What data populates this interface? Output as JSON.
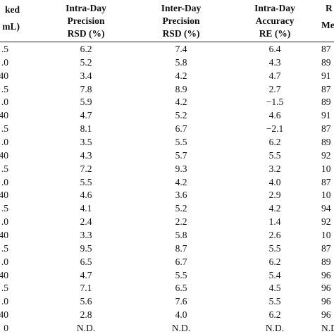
{
  "table": {
    "headers": [
      [
        "ked",
        "mL)"
      ],
      [
        "Intra-Day",
        "Precision",
        "RSD (%)"
      ],
      [
        "Inter-Day",
        "Precision",
        "RSD (%)"
      ],
      [
        "Intra-Day",
        "Accuracy",
        "RE (%)"
      ],
      [
        "R",
        "Me"
      ]
    ],
    "rows": [
      [
        ".5",
        "6.2",
        "7.4",
        "6.4",
        "87"
      ],
      [
        ".0",
        "5.2",
        "5.8",
        "4.3",
        "89"
      ],
      [
        "40",
        "3.4",
        "4.2",
        "4.7",
        "91"
      ],
      [
        ".5",
        "7.8",
        "8.9",
        "2.7",
        "87"
      ],
      [
        ".0",
        "5.9",
        "4.2",
        "−1.5",
        "89"
      ],
      [
        "40",
        "4.7",
        "5.2",
        "4.6",
        "91"
      ],
      [
        ".5",
        "8.1",
        "6.7",
        "−2.1",
        "87"
      ],
      [
        ".0",
        "3.5",
        "5.5",
        "6.2",
        "89"
      ],
      [
        "40",
        "4.3",
        "5.7",
        "5.5",
        "92"
      ],
      [
        ".5",
        "7.2",
        "9.3",
        "3.2",
        "10"
      ],
      [
        ".0",
        "5.5",
        "4.2",
        "4.0",
        "87"
      ],
      [
        "40",
        "4.6",
        "3.6",
        "2.9",
        "10"
      ],
      [
        ".5",
        "4.1",
        "5.2",
        "4.2",
        "94"
      ],
      [
        ".0",
        "2.4",
        "2.2",
        "1.4",
        "92"
      ],
      [
        "40",
        "3.3",
        "5.8",
        "2.6",
        "10"
      ],
      [
        ".5",
        "9.5",
        "8.7",
        "5.5",
        "87"
      ],
      [
        ".0",
        "6.5",
        "6.7",
        "6.2",
        "89"
      ],
      [
        "40",
        "4.7",
        "5.5",
        "5.4",
        "96"
      ],
      [
        ".5",
        "7.1",
        "6.5",
        "4.5",
        "96"
      ],
      [
        ".0",
        "5.6",
        "7.6",
        "5.5",
        "96"
      ],
      [
        "40",
        "2.8",
        "4.0",
        "6.2",
        "96"
      ],
      [
        "0",
        "N.D.",
        "N.D.",
        "N.D.",
        "N.D."
      ]
    ]
  }
}
